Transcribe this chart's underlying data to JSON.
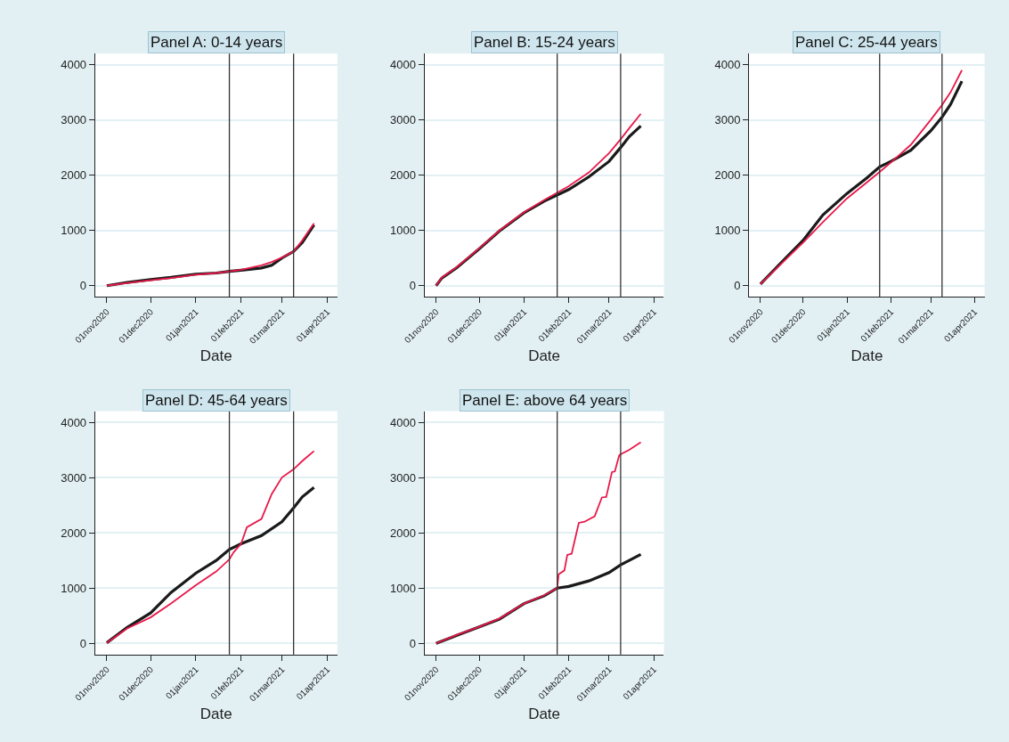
{
  "chart_data": [
    {
      "type": "line",
      "title": "Panel A: 0-14 years",
      "xlabel": "Date",
      "xlim": [
        "2020-10-24",
        "2021-04-08"
      ],
      "ylim": [
        -200,
        4200
      ],
      "xticks": [
        {
          "value": "2020-11-01",
          "label": "01nov2020"
        },
        {
          "value": "2020-12-01",
          "label": "01dec2020"
        },
        {
          "value": "2021-01-01",
          "label": "01jan2021"
        },
        {
          "value": "2021-02-01",
          "label": "01feb2021"
        },
        {
          "value": "2021-03-01",
          "label": "01mar2021"
        },
        {
          "value": "2021-04-01",
          "label": "01apr2021"
        }
      ],
      "yticks": [
        0,
        1000,
        2000,
        3000,
        4000
      ],
      "grid": "y",
      "ref_lines": [
        {
          "axis": "x",
          "value": "2021-01-24",
          "color": "#333333"
        },
        {
          "axis": "x",
          "value": "2021-03-09",
          "color": "#333333"
        }
      ],
      "series": [
        {
          "color": "#1a1a1a",
          "x": [
            "2020-11-01",
            "2020-11-15",
            "2020-12-01",
            "2020-12-15",
            "2021-01-01",
            "2021-01-15",
            "2021-01-24",
            "2021-02-01",
            "2021-02-15",
            "2021-02-22",
            "2021-03-01",
            "2021-03-09",
            "2021-03-15",
            "2021-03-23"
          ],
          "values": [
            0,
            60,
            110,
            150,
            210,
            230,
            260,
            280,
            320,
            370,
            500,
            620,
            780,
            1100
          ]
        },
        {
          "color": "#e8194a",
          "x": [
            "2020-11-01",
            "2020-11-15",
            "2020-12-01",
            "2020-12-15",
            "2021-01-01",
            "2021-01-15",
            "2021-01-24",
            "2021-02-01",
            "2021-02-15",
            "2021-02-22",
            "2021-03-01",
            "2021-03-09",
            "2021-03-15",
            "2021-03-23"
          ],
          "values": [
            0,
            50,
            100,
            140,
            200,
            230,
            260,
            290,
            370,
            430,
            510,
            620,
            820,
            1130
          ]
        }
      ]
    },
    {
      "type": "line",
      "title": "Panel B: 15-24 years",
      "xlabel": "Date",
      "xlim": [
        "2020-10-24",
        "2021-04-08"
      ],
      "ylim": [
        -200,
        4200
      ],
      "xticks": [
        {
          "value": "2020-11-01",
          "label": "01nov2020"
        },
        {
          "value": "2020-12-01",
          "label": "01dec2020"
        },
        {
          "value": "2021-01-01",
          "label": "01jan2021"
        },
        {
          "value": "2021-02-01",
          "label": "01feb2021"
        },
        {
          "value": "2021-03-01",
          "label": "01mar2021"
        },
        {
          "value": "2021-04-01",
          "label": "01apr2021"
        }
      ],
      "yticks": [
        0,
        1000,
        2000,
        3000,
        4000
      ],
      "grid": "y",
      "ref_lines": [
        {
          "axis": "x",
          "value": "2021-01-24",
          "color": "#333333"
        },
        {
          "axis": "x",
          "value": "2021-03-09",
          "color": "#333333"
        }
      ],
      "series": [
        {
          "color": "#1a1a1a",
          "x": [
            "2020-11-01",
            "2020-11-05",
            "2020-11-15",
            "2020-12-01",
            "2020-12-15",
            "2021-01-01",
            "2021-01-15",
            "2021-02-01",
            "2021-02-15",
            "2021-03-01",
            "2021-03-09",
            "2021-03-15",
            "2021-03-23"
          ],
          "values": [
            0,
            140,
            320,
            670,
            990,
            1320,
            1530,
            1740,
            1970,
            2250,
            2500,
            2700,
            2890
          ]
        },
        {
          "color": "#e8194a",
          "x": [
            "2020-11-01",
            "2020-11-05",
            "2020-11-15",
            "2020-12-01",
            "2020-12-15",
            "2021-01-01",
            "2021-01-15",
            "2021-02-01",
            "2021-02-15",
            "2021-03-01",
            "2021-03-09",
            "2021-03-15",
            "2021-03-23"
          ],
          "values": [
            0,
            150,
            330,
            680,
            1000,
            1330,
            1550,
            1800,
            2050,
            2400,
            2650,
            2850,
            3110
          ]
        }
      ]
    },
    {
      "type": "line",
      "title": "Panel C: 25-44 years",
      "xlabel": "Date",
      "xlim": [
        "2020-10-24",
        "2021-04-08"
      ],
      "ylim": [
        -200,
        4200
      ],
      "xticks": [
        {
          "value": "2020-11-01",
          "label": "01nov2020"
        },
        {
          "value": "2020-12-01",
          "label": "01dec2020"
        },
        {
          "value": "2021-01-01",
          "label": "01jan2021"
        },
        {
          "value": "2021-02-01",
          "label": "01feb2021"
        },
        {
          "value": "2021-03-01",
          "label": "01mar2021"
        },
        {
          "value": "2021-04-01",
          "label": "01apr2021"
        }
      ],
      "yticks": [
        0,
        1000,
        2000,
        3000,
        4000
      ],
      "grid": "y",
      "ref_lines": [
        {
          "axis": "x",
          "value": "2021-01-24",
          "color": "#333333"
        },
        {
          "axis": "x",
          "value": "2021-03-09",
          "color": "#333333"
        }
      ],
      "series": [
        {
          "color": "#1a1a1a",
          "x": [
            "2020-11-01",
            "2020-11-15",
            "2020-12-01",
            "2020-12-15",
            "2021-01-01",
            "2021-01-15",
            "2021-01-24",
            "2021-02-01",
            "2021-02-15",
            "2021-03-01",
            "2021-03-09",
            "2021-03-15",
            "2021-03-23"
          ],
          "values": [
            30,
            400,
            820,
            1280,
            1670,
            1950,
            2150,
            2250,
            2450,
            2800,
            3050,
            3280,
            3700
          ]
        },
        {
          "color": "#e8194a",
          "x": [
            "2020-11-01",
            "2020-11-15",
            "2020-12-01",
            "2020-12-15",
            "2021-01-01",
            "2021-01-15",
            "2021-01-24",
            "2021-02-01",
            "2021-02-15",
            "2021-03-01",
            "2021-03-09",
            "2021-03-15",
            "2021-03-23"
          ],
          "values": [
            30,
            380,
            780,
            1150,
            1580,
            1870,
            2060,
            2230,
            2550,
            3000,
            3270,
            3500,
            3900
          ]
        }
      ]
    },
    {
      "type": "line",
      "title": "Panel D: 45-64 years",
      "xlabel": "Date",
      "xlim": [
        "2020-10-24",
        "2021-04-08"
      ],
      "ylim": [
        -200,
        4200
      ],
      "xticks": [
        {
          "value": "2020-11-01",
          "label": "01nov2020"
        },
        {
          "value": "2020-12-01",
          "label": "01dec2020"
        },
        {
          "value": "2021-01-01",
          "label": "01jan2021"
        },
        {
          "value": "2021-02-01",
          "label": "01feb2021"
        },
        {
          "value": "2021-03-01",
          "label": "01mar2021"
        },
        {
          "value": "2021-04-01",
          "label": "01apr2021"
        }
      ],
      "yticks": [
        0,
        1000,
        2000,
        3000,
        4000
      ],
      "grid": "y",
      "ref_lines": [
        {
          "axis": "x",
          "value": "2021-01-24",
          "color": "#333333"
        },
        {
          "axis": "x",
          "value": "2021-03-09",
          "color": "#333333"
        }
      ],
      "series": [
        {
          "color": "#1a1a1a",
          "x": [
            "2020-11-01",
            "2020-11-15",
            "2020-12-01",
            "2020-12-15",
            "2021-01-01",
            "2021-01-15",
            "2021-01-24",
            "2021-02-01",
            "2021-02-15",
            "2021-03-01",
            "2021-03-09",
            "2021-03-15",
            "2021-03-23"
          ],
          "values": [
            10,
            290,
            550,
            920,
            1270,
            1500,
            1700,
            1800,
            1950,
            2200,
            2450,
            2650,
            2820
          ]
        },
        {
          "color": "#e8194a",
          "x": [
            "2020-11-01",
            "2020-11-15",
            "2020-12-01",
            "2020-12-15",
            "2021-01-01",
            "2021-01-15",
            "2021-01-24",
            "2021-01-27",
            "2021-02-01",
            "2021-02-05",
            "2021-02-15",
            "2021-02-22",
            "2021-03-01",
            "2021-03-09",
            "2021-03-15",
            "2021-03-23"
          ],
          "values": [
            10,
            270,
            470,
            720,
            1050,
            1300,
            1520,
            1650,
            1800,
            2100,
            2250,
            2700,
            3000,
            3150,
            3300,
            3480
          ]
        }
      ]
    },
    {
      "type": "line",
      "title": "Panel E: above 64 years",
      "xlabel": "Date",
      "xlim": [
        "2020-10-24",
        "2021-04-08"
      ],
      "ylim": [
        -200,
        4200
      ],
      "xticks": [
        {
          "value": "2020-11-01",
          "label": "01nov2020"
        },
        {
          "value": "2020-12-01",
          "label": "01dec2020"
        },
        {
          "value": "2021-01-01",
          "label": "01jan2021"
        },
        {
          "value": "2021-02-01",
          "label": "01feb2021"
        },
        {
          "value": "2021-03-01",
          "label": "01mar2021"
        },
        {
          "value": "2021-04-01",
          "label": "01apr2021"
        }
      ],
      "yticks": [
        0,
        1000,
        2000,
        3000,
        4000
      ],
      "grid": "y",
      "ref_lines": [
        {
          "axis": "x",
          "value": "2021-01-24",
          "color": "#333333"
        },
        {
          "axis": "x",
          "value": "2021-03-09",
          "color": "#333333"
        }
      ],
      "series": [
        {
          "color": "#1a1a1a",
          "x": [
            "2020-11-01",
            "2020-11-15",
            "2020-12-01",
            "2020-12-15",
            "2021-01-01",
            "2021-01-15",
            "2021-01-24",
            "2021-02-01",
            "2021-02-15",
            "2021-03-01",
            "2021-03-09",
            "2021-03-15",
            "2021-03-23"
          ],
          "values": [
            0,
            140,
            300,
            440,
            720,
            860,
            1000,
            1030,
            1130,
            1280,
            1420,
            1500,
            1610
          ]
        },
        {
          "color": "#e8194a",
          "x": [
            "2020-11-01",
            "2020-11-15",
            "2020-12-01",
            "2020-12-15",
            "2021-01-01",
            "2021-01-15",
            "2021-01-24",
            "2021-01-25",
            "2021-01-29",
            "2021-01-31",
            "2021-02-03",
            "2021-02-08",
            "2021-02-12",
            "2021-02-19",
            "2021-02-24",
            "2021-02-27",
            "2021-03-03",
            "2021-03-05",
            "2021-03-08",
            "2021-03-09",
            "2021-03-15",
            "2021-03-23"
          ],
          "values": [
            0,
            150,
            300,
            450,
            720,
            870,
            1000,
            1250,
            1320,
            1600,
            1620,
            2180,
            2200,
            2300,
            2640,
            2650,
            3100,
            3110,
            3400,
            3420,
            3500,
            3640
          ]
        }
      ]
    }
  ]
}
